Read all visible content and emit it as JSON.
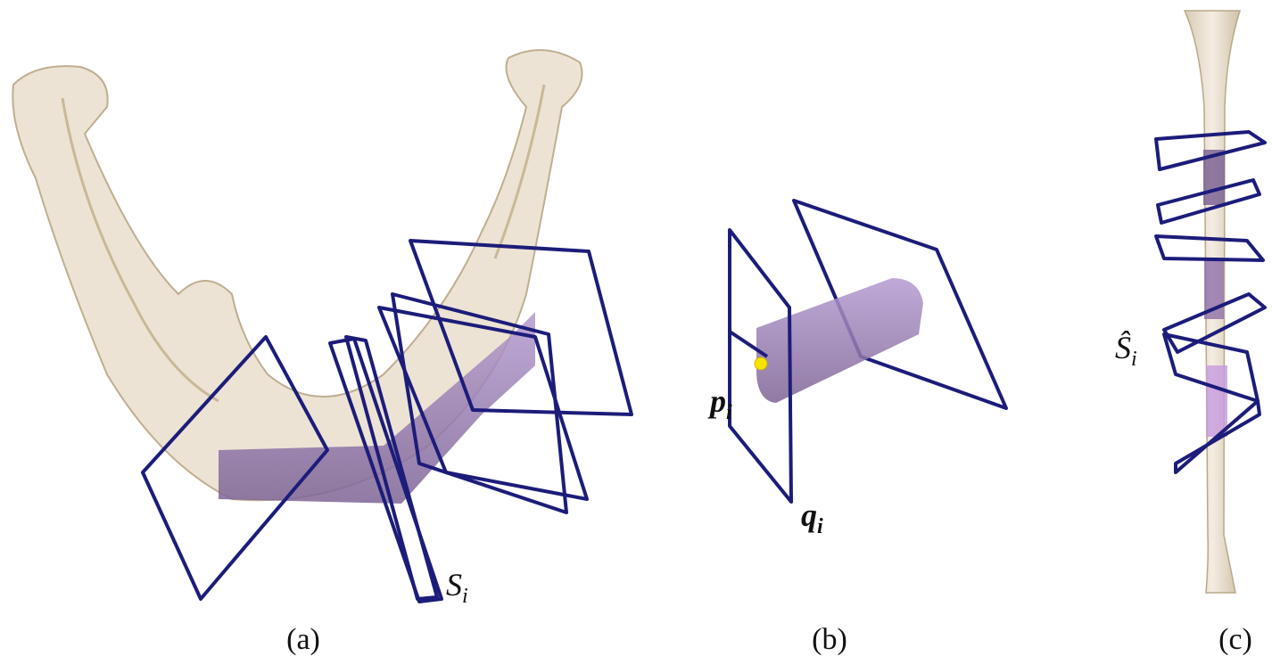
{
  "panels": [
    {
      "caption": "(a)",
      "labels": [
        {
          "base": "S",
          "sub": "i"
        }
      ]
    },
    {
      "caption": "(b)",
      "labels": [
        {
          "base": "p",
          "sub": "i"
        },
        {
          "base": "q",
          "sub": "i"
        }
      ]
    },
    {
      "caption": "(c)",
      "labels": [
        {
          "base": "Ŝ",
          "sub": "i"
        }
      ]
    }
  ]
}
